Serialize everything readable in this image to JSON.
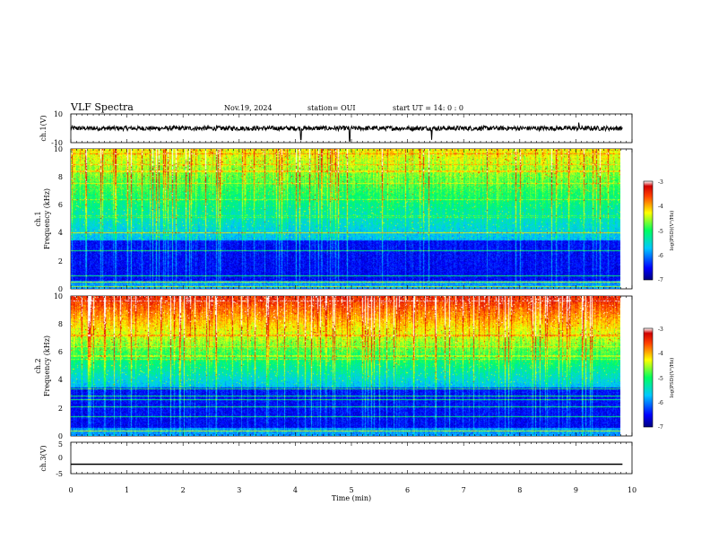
{
  "header": {
    "title": "VLF Spectra",
    "date": "Nov.19, 2024",
    "station": "station= OUI",
    "start": "start  UT =   14: 0  : 0"
  },
  "chart_data": [
    {
      "type": "line",
      "name": "ch1-waveform",
      "ylabel": "ch.1(V)",
      "ylim": [
        -10,
        10
      ],
      "yticks": [
        "10",
        "-10"
      ],
      "xlim": [
        0,
        10
      ],
      "baseline": 0,
      "spikes": [
        {
          "x": 4.1,
          "y": -8
        },
        {
          "x": 4.97,
          "y": -9
        },
        {
          "x": 6.43,
          "y": -8
        },
        {
          "x": 9.05,
          "y": 4
        }
      ]
    },
    {
      "type": "heatmap",
      "name": "ch1-spectrogram",
      "ylabel_1": "ch.1",
      "ylabel_2": "Frequency (kHz)",
      "ylim": [
        0,
        10
      ],
      "yticks": [
        "0",
        "2",
        "4",
        "6",
        "8",
        "10"
      ],
      "xlim": [
        0,
        9.83
      ],
      "colorbar": {
        "label": "log(PSD)(V²/Hz)",
        "range": [
          -7,
          -3
        ],
        "ticks": [
          "-3",
          "-4",
          "-5",
          "-6",
          "-7"
        ]
      }
    },
    {
      "type": "heatmap",
      "name": "ch2-spectrogram",
      "ylabel_1": "ch.2",
      "ylabel_2": "Frequency (kHz)",
      "ylim": [
        0,
        10
      ],
      "yticks": [
        "0",
        "2",
        "4",
        "6",
        "8",
        "10"
      ],
      "xlim": [
        0,
        9.83
      ],
      "colorbar": {
        "label": "log(PSD)(V²/Hz)",
        "range": [
          -7,
          -3
        ],
        "ticks": [
          "-3",
          "-4",
          "-5",
          "-6",
          "-7"
        ]
      }
    },
    {
      "type": "line",
      "name": "ch3-waveform",
      "ylabel": "ch.3(V)",
      "ylim": [
        -5,
        5
      ],
      "yticks": [
        "5",
        "0",
        "-5"
      ],
      "x": [
        0,
        9.83
      ],
      "y": [
        -2,
        -2
      ]
    }
  ],
  "xaxis": {
    "label": "Time (min)",
    "ticks": [
      "0",
      "1",
      "2",
      "3",
      "4",
      "5",
      "6",
      "7",
      "8",
      "9",
      "10"
    ]
  }
}
